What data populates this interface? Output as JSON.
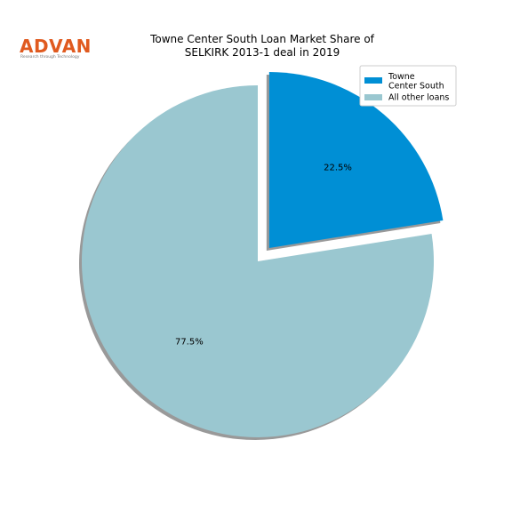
{
  "logo": {
    "name": "ADVAN",
    "tagline": "Research through Technology"
  },
  "chart_data": {
    "type": "pie",
    "title": [
      "Towne Center South Loan Market Share of",
      "SELKIRK 2013-1 deal in 2019"
    ],
    "categories": [
      "Towne\nCenter South",
      "All other loans"
    ],
    "values": [
      22.5,
      77.5
    ],
    "value_labels": [
      "22.5%",
      "77.5%"
    ],
    "colors": [
      "#008fd5",
      "#9ac7d0"
    ],
    "explode": [
      0.1,
      0
    ],
    "shadow": true,
    "legend": "upper right"
  }
}
